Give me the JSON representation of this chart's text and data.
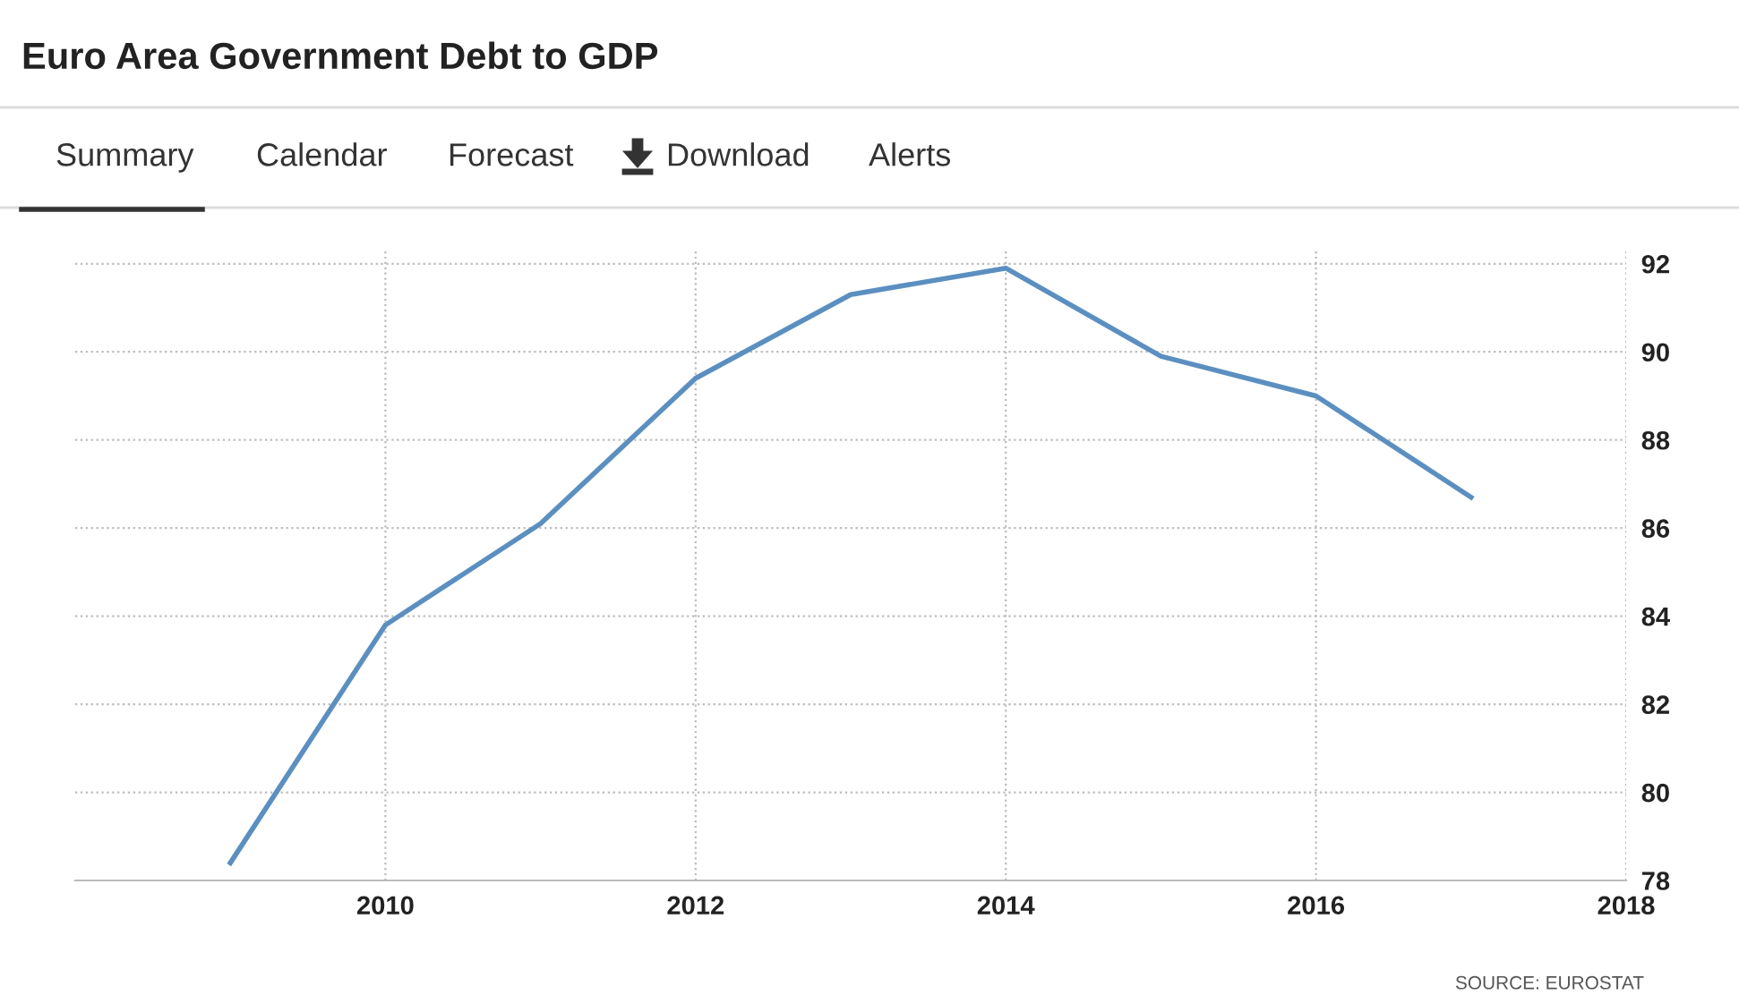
{
  "chart_data": {
    "type": "line",
    "title": "Euro Area Government Debt to GDP",
    "x": [
      2009,
      2010,
      2011,
      2012,
      2013,
      2014,
      2015,
      2016,
      2017
    ],
    "series": [
      {
        "color": "#5b8fc0",
        "values": [
          78.4,
          83.8,
          86.1,
          89.4,
          91.3,
          91.9,
          89.9,
          89.0,
          86.7
        ]
      }
    ],
    "xlim": [
      2008,
      2018
    ],
    "xticks": [
      2010,
      2012,
      2014,
      2016,
      2018
    ],
    "ylim": [
      78,
      92.3
    ],
    "yticks": [
      78,
      80,
      82,
      84,
      86,
      88,
      90,
      92
    ],
    "grid": true,
    "legend": false,
    "marker": "none",
    "line_style": "solid",
    "annotations": [
      "Summary",
      "Calendar",
      "Forecast",
      "Download",
      "Alerts",
      "SOURCE: EUROSTAT"
    ]
  }
}
